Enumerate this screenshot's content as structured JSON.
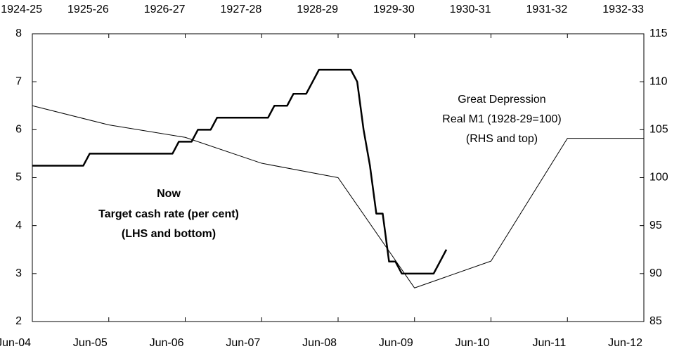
{
  "chart_data": {
    "type": "line",
    "xlim": [
      "2004-06",
      "2012-06"
    ],
    "xticks": [
      {
        "value": "2004-06",
        "label": "Jun-04"
      },
      {
        "value": "2005-06",
        "label": "Jun-05"
      },
      {
        "value": "2006-06",
        "label": "Jun-06"
      },
      {
        "value": "2007-06",
        "label": "Jun-07"
      },
      {
        "value": "2008-06",
        "label": "Jun-08"
      },
      {
        "value": "2009-06",
        "label": "Jun-09"
      },
      {
        "value": "2010-06",
        "label": "Jun-10"
      },
      {
        "value": "2011-06",
        "label": "Jun-11"
      },
      {
        "value": "2012-06",
        "label": "Jun-12"
      }
    ],
    "x2ticks": [
      "1924-25",
      "1925-26",
      "1926-27",
      "1927-28",
      "1928-29",
      "1929-30",
      "1930-31",
      "1931-32",
      "1932-33"
    ],
    "ylim": [
      2,
      8
    ],
    "yticks": [
      2,
      3,
      4,
      5,
      6,
      7,
      8
    ],
    "y2lim": [
      85,
      115
    ],
    "y2ticks": [
      85,
      90,
      95,
      100,
      105,
      110,
      115
    ],
    "series": [
      {
        "group": "Now",
        "name": "Target cash rate (per cent)",
        "note": "(LHS and bottom)",
        "color": "#000000",
        "x": [
          "2004-06",
          "2004-07",
          "2004-08",
          "2004-09",
          "2004-10",
          "2004-11",
          "2004-12",
          "2005-01",
          "2005-02",
          "2005-03",
          "2005-04",
          "2005-05",
          "2005-06",
          "2005-07",
          "2005-08",
          "2005-09",
          "2005-10",
          "2005-11",
          "2005-12",
          "2006-01",
          "2006-02",
          "2006-03",
          "2006-04",
          "2006-05",
          "2006-06",
          "2006-07",
          "2006-08",
          "2006-09",
          "2006-10",
          "2006-11",
          "2006-12",
          "2007-01",
          "2007-02",
          "2007-03",
          "2007-04",
          "2007-05",
          "2007-06",
          "2007-07",
          "2007-08",
          "2007-09",
          "2007-10",
          "2007-11",
          "2007-12",
          "2008-01",
          "2008-02",
          "2008-03",
          "2008-04",
          "2008-05",
          "2008-06",
          "2008-07",
          "2008-08",
          "2008-09",
          "2008-10",
          "2008-11",
          "2008-12",
          "2009-01",
          "2009-02",
          "2009-03",
          "2009-04",
          "2009-05",
          "2009-06",
          "2009-07",
          "2009-08",
          "2009-09",
          "2009-10",
          "2009-11"
        ],
        "values": [
          5.25,
          5.25,
          5.25,
          5.25,
          5.25,
          5.25,
          5.25,
          5.25,
          5.25,
          5.5,
          5.5,
          5.5,
          5.5,
          5.5,
          5.5,
          5.5,
          5.5,
          5.5,
          5.5,
          5.5,
          5.5,
          5.5,
          5.5,
          5.75,
          5.75,
          5.75,
          6,
          6,
          6,
          6.25,
          6.25,
          6.25,
          6.25,
          6.25,
          6.25,
          6.25,
          6.25,
          6.25,
          6.5,
          6.5,
          6.5,
          6.75,
          6.75,
          6.75,
          7,
          7.25,
          7.25,
          7.25,
          7.25,
          7.25,
          7.25,
          7,
          6,
          5.25,
          4.25,
          4.25,
          3.25,
          3.25,
          3,
          3,
          3,
          3,
          3,
          3,
          3.25,
          3.5
        ]
      },
      {
        "group": "Great Depression",
        "name": "Real M1 (1928-29=100)",
        "note": "(RHS and top)",
        "color": "#000000",
        "axis": "y2",
        "x": [
          "1924-25",
          "1925-26",
          "1926-27",
          "1927-28",
          "1928-29",
          "1929-30",
          "1930-31",
          "1931-32",
          "1932-33"
        ],
        "values": [
          107.5,
          105.5,
          104.2,
          101.5,
          100,
          88.5,
          91.3,
          104.1,
          104.1
        ]
      }
    ]
  }
}
